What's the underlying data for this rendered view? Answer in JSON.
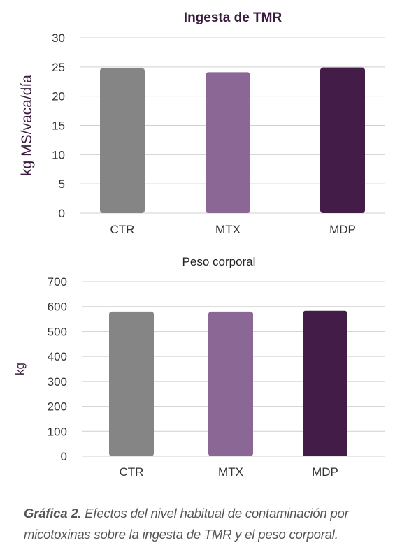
{
  "colors": {
    "CTR": "#858585",
    "MTX": "#8b6796",
    "MDP": "#431c48",
    "grid": "#d0d0d0",
    "title": "#3a1a3e"
  },
  "chart_data": [
    {
      "type": "bar",
      "title": "Ingesta de TMR",
      "ylabel": "kg MS/vaca/día",
      "xlabel": "",
      "categories": [
        "CTR",
        "MTX",
        "MDP"
      ],
      "values": [
        24.8,
        24.1,
        24.9
      ],
      "ylim": [
        0,
        30
      ],
      "yticks": [
        0,
        5,
        10,
        15,
        20,
        25,
        30
      ],
      "grid": true,
      "legend": "none"
    },
    {
      "type": "bar",
      "title": "Peso corporal",
      "ylabel": "kg",
      "xlabel": "",
      "categories": [
        "CTR",
        "MTX",
        "MDP"
      ],
      "values": [
        580,
        580,
        583
      ],
      "ylim": [
        0,
        700
      ],
      "yticks": [
        0,
        100,
        200,
        300,
        400,
        500,
        600,
        700
      ],
      "grid": true,
      "legend": "none"
    }
  ],
  "caption": {
    "lead": "Gráfica 2.",
    "text": " Efectos del nivel habitual de contaminación por micotoxinas sobre la ingesta de TMR y el peso corporal."
  }
}
